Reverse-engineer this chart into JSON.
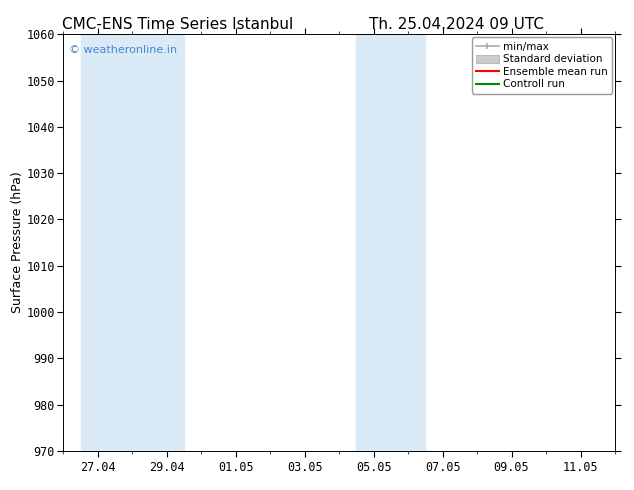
{
  "title_left": "CMC-ENS Time Series Istanbul",
  "title_right": "Th. 25.04.2024 09 UTC",
  "ylabel": "Surface Pressure (hPa)",
  "ylim": [
    970,
    1060
  ],
  "yticks": [
    970,
    980,
    990,
    1000,
    1010,
    1020,
    1030,
    1040,
    1050,
    1060
  ],
  "xtick_labels": [
    "27.04",
    "29.04",
    "01.05",
    "03.05",
    "05.05",
    "07.05",
    "09.05",
    "11.05"
  ],
  "watermark": "© weatheronline.in",
  "watermark_color": "#4488cc",
  "bg_color": "#ffffff",
  "plot_bg_color": "#ffffff",
  "shade_color": "#daeaf7",
  "legend_labels": [
    "min/max",
    "Standard deviation",
    "Ensemble mean run",
    "Controll run"
  ],
  "legend_colors_line": [
    "#999999",
    "#bbbbbb",
    "#ff0000",
    "#008800"
  ],
  "title_fontsize": 11,
  "axis_fontsize": 9,
  "tick_fontsize": 8.5
}
